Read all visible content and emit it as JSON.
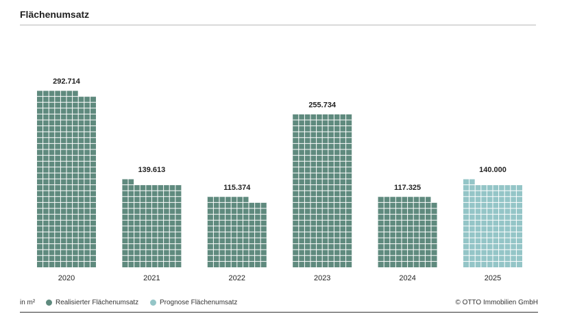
{
  "chart_data": {
    "type": "bar",
    "title": "Flächenumsatz",
    "unit_label": "in m²",
    "categories": [
      "2020",
      "2021",
      "2022",
      "2023",
      "2024",
      "2025"
    ],
    "values": [
      292714,
      139613,
      115374,
      255734,
      117325,
      140000
    ],
    "value_labels": [
      "292.714",
      "139.613",
      "115.374",
      "255.734",
      "117.325",
      "140.000"
    ],
    "kinds": [
      "realized",
      "realized",
      "realized",
      "realized",
      "realized",
      "forecast"
    ],
    "ylim": [
      0,
      300000
    ],
    "grid": false,
    "legend": [
      {
        "key": "realized",
        "label": "Realisierter Flächenumsatz",
        "color": "#5f8a7e"
      },
      {
        "key": "forecast",
        "label": "Prognose Flächenumsatz",
        "color": "#94c5c7"
      }
    ],
    "legend_position": "bottom-left"
  },
  "source": "© OTTO Immobilien GmbH"
}
